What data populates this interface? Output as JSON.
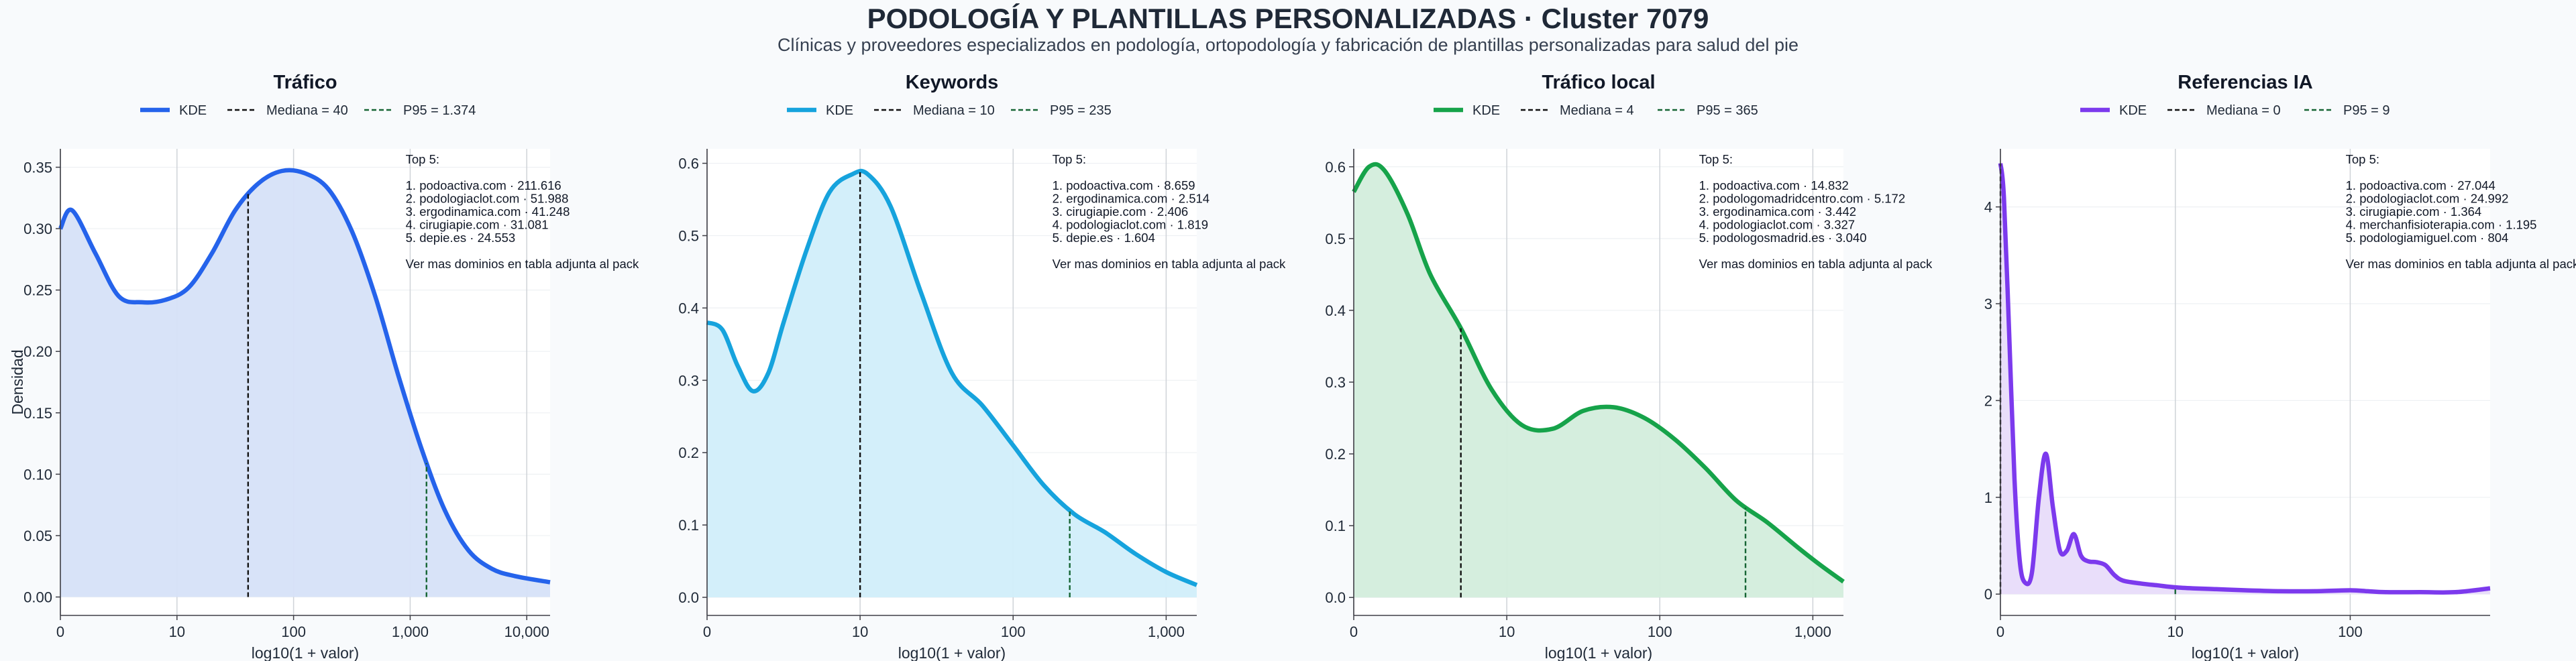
{
  "page": {
    "title": "PODOLOGÍA Y PLANTILLAS PERSONALIZADAS · Cluster 7079",
    "subtitle": "Clínicas y proveedores especializados en podología, ortopodología y fabricación de plantillas personalizadas para salud del pie"
  },
  "chart_data": [
    {
      "type": "area",
      "title": "Tráfico",
      "color": "#2563eb",
      "fill": "#d6e2f8",
      "xlabel": "log10(1 + valor)",
      "ylabel": "Densidad",
      "xlim": [
        0,
        4.2
      ],
      "ylim": [
        -0.015,
        0.365
      ],
      "x_ticks": [
        0,
        1,
        2,
        3,
        4
      ],
      "x_tick_labels": [
        "0",
        "10",
        "100",
        "1,000",
        "10,000"
      ],
      "y_ticks": [
        0,
        0.05,
        0.1,
        0.15,
        0.2,
        0.25,
        0.3,
        0.35
      ],
      "y_tick_labels": [
        "0.00",
        "0.05",
        "0.10",
        "0.15",
        "0.20",
        "0.25",
        "0.30",
        "0.35"
      ],
      "legend": [
        {
          "label": "KDE",
          "style": "solid"
        },
        {
          "label": "Mediana = 40",
          "style": "dashed",
          "color": "#111111"
        },
        {
          "label": "P95 = 1.374",
          "style": "dashed",
          "color": "#166534"
        }
      ],
      "median_x": 1.61,
      "p95_x": 3.14,
      "annotation": [
        "Top 5:",
        "",
        "1. podoactiva.com · 211.616",
        "2. podologiaclot.com · 51.988",
        "3. ergodinamica.com · 41.248",
        "4. cirugiapie.com · 31.081",
        "5. depie.es · 24.553",
        "",
        "Ver mas dominios en tabla adjunta al pack"
      ],
      "x": [
        0,
        0.1,
        0.3,
        0.5,
        0.7,
        0.9,
        1.1,
        1.3,
        1.5,
        1.7,
        1.9,
        2.1,
        2.3,
        2.5,
        2.7,
        2.9,
        3.1,
        3.3,
        3.5,
        3.7,
        3.9,
        4.2
      ],
      "y": [
        0.3,
        0.315,
        0.28,
        0.245,
        0.24,
        0.242,
        0.252,
        0.28,
        0.315,
        0.337,
        0.347,
        0.345,
        0.332,
        0.298,
        0.245,
        0.18,
        0.12,
        0.07,
        0.038,
        0.023,
        0.017,
        0.012
      ]
    },
    {
      "type": "area",
      "title": "Keywords",
      "color": "#16a3dd",
      "fill": "#d1eefa",
      "xlabel": "log10(1 + valor)",
      "ylabel": "",
      "xlim": [
        0,
        3.2
      ],
      "ylim": [
        -0.025,
        0.62
      ],
      "x_ticks": [
        0,
        1,
        2,
        3
      ],
      "x_tick_labels": [
        "0",
        "10",
        "100",
        "1,000"
      ],
      "y_ticks": [
        0,
        0.1,
        0.2,
        0.3,
        0.4,
        0.5,
        0.6
      ],
      "y_tick_labels": [
        "0.0",
        "0.1",
        "0.2",
        "0.3",
        "0.4",
        "0.5",
        "0.6"
      ],
      "legend": [
        {
          "label": "KDE",
          "style": "solid"
        },
        {
          "label": "Mediana = 10",
          "style": "dashed",
          "color": "#111111"
        },
        {
          "label": "P95 = 235",
          "style": "dashed",
          "color": "#166534"
        }
      ],
      "median_x": 1.0,
      "p95_x": 2.37,
      "annotation": [
        "Top 5:",
        "",
        "1. podoactiva.com · 8.659",
        "2. ergodinamica.com · 2.514",
        "3. cirugiapie.com · 2.406",
        "4. podologiaclot.com · 1.819",
        "5. depie.es · 1.604",
        "",
        "Ver mas dominios en tabla adjunta al pack"
      ],
      "x": [
        0,
        0.1,
        0.2,
        0.3,
        0.4,
        0.5,
        0.65,
        0.8,
        0.95,
        1.05,
        1.2,
        1.4,
        1.6,
        1.8,
        2.0,
        2.2,
        2.4,
        2.6,
        2.8,
        3.0,
        3.2
      ],
      "y": [
        0.38,
        0.37,
        0.32,
        0.285,
        0.31,
        0.38,
        0.48,
        0.56,
        0.585,
        0.585,
        0.54,
        0.42,
        0.31,
        0.265,
        0.21,
        0.155,
        0.115,
        0.09,
        0.06,
        0.035,
        0.017
      ]
    },
    {
      "type": "area",
      "title": "Tráfico local",
      "color": "#16a34a",
      "fill": "#d3eddc",
      "xlabel": "log10(1 + valor)",
      "ylabel": "",
      "xlim": [
        0,
        3.2
      ],
      "ylim": [
        -0.025,
        0.625
      ],
      "x_ticks": [
        0,
        1,
        2,
        3
      ],
      "x_tick_labels": [
        "0",
        "10",
        "100",
        "1,000"
      ],
      "y_ticks": [
        0,
        0.1,
        0.2,
        0.3,
        0.4,
        0.5,
        0.6
      ],
      "y_tick_labels": [
        "0.0",
        "0.1",
        "0.2",
        "0.3",
        "0.4",
        "0.5",
        "0.6"
      ],
      "legend": [
        {
          "label": "KDE",
          "style": "solid"
        },
        {
          "label": "Mediana = 4",
          "style": "dashed",
          "color": "#111111"
        },
        {
          "label": "P95 = 365",
          "style": "dashed",
          "color": "#166534"
        }
      ],
      "median_x": 0.7,
      "p95_x": 2.56,
      "annotation": [
        "Top 5:",
        "",
        "1. podoactiva.com · 14.832",
        "2. podologomadridcentro.com · 5.172",
        "3. ergodinamica.com · 3.442",
        "4. podologiaclot.com · 3.327",
        "5. podologosmadrid.es · 3.040",
        "",
        "Ver mas dominios en tabla adjunta al pack"
      ],
      "x": [
        0,
        0.1,
        0.2,
        0.35,
        0.5,
        0.7,
        0.9,
        1.1,
        1.3,
        1.5,
        1.7,
        1.9,
        2.1,
        2.3,
        2.5,
        2.7,
        2.9,
        3.05,
        3.2
      ],
      "y": [
        0.565,
        0.6,
        0.595,
        0.535,
        0.45,
        0.375,
        0.29,
        0.24,
        0.235,
        0.26,
        0.265,
        0.25,
        0.22,
        0.18,
        0.135,
        0.105,
        0.07,
        0.045,
        0.022
      ]
    },
    {
      "type": "area",
      "title": "Referencias IA",
      "color": "#7c3aed",
      "fill": "#e8dcfa",
      "xlabel": "log10(1 + valor)",
      "ylabel": "",
      "xlim": [
        0,
        2.8
      ],
      "ylim": [
        -0.22,
        4.6
      ],
      "x_ticks": [
        0,
        1,
        2
      ],
      "x_tick_labels": [
        "0",
        "10",
        "100"
      ],
      "y_ticks": [
        0,
        1,
        2,
        3,
        4
      ],
      "y_tick_labels": [
        "0",
        "1",
        "2",
        "3",
        "4"
      ],
      "legend": [
        {
          "label": "KDE",
          "style": "solid"
        },
        {
          "label": "Mediana = 0",
          "style": "dashed",
          "color": "#111111"
        },
        {
          "label": "P95 = 9",
          "style": "dashed",
          "color": "#166534"
        }
      ],
      "median_x": 0,
      "p95_x": 1.0,
      "annotation": [
        "Top 5:",
        "",
        "1. podoactiva.com · 27.044",
        "2. podologiaclot.com · 24.992",
        "3. cirugiapie.com · 1.364",
        "4. merchanfisioterapia.com · 1.195",
        "5. podologiamiguel.com · 804",
        "",
        "Ver mas dominios en tabla adjunta al pack"
      ],
      "x": [
        0,
        0.02,
        0.05,
        0.08,
        0.11,
        0.14,
        0.18,
        0.22,
        0.26,
        0.3,
        0.34,
        0.38,
        0.42,
        0.46,
        0.5,
        0.55,
        0.6,
        0.65,
        0.7,
        0.8,
        0.9,
        1.0,
        1.1,
        1.25,
        1.4,
        1.6,
        1.8,
        2.0,
        2.1,
        2.2,
        2.4,
        2.6,
        2.8
      ],
      "y": [
        4.45,
        4.1,
        2.7,
        1.2,
        0.35,
        0.12,
        0.22,
        1.0,
        1.45,
        0.9,
        0.45,
        0.45,
        0.62,
        0.4,
        0.34,
        0.33,
        0.3,
        0.2,
        0.14,
        0.11,
        0.09,
        0.07,
        0.06,
        0.05,
        0.04,
        0.03,
        0.03,
        0.04,
        0.03,
        0.02,
        0.02,
        0.02,
        0.06
      ]
    }
  ]
}
